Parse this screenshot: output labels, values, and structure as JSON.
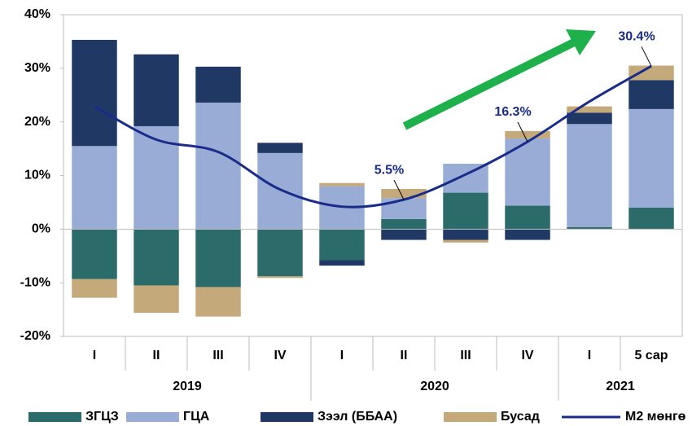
{
  "chart_data": {
    "type": "bar",
    "categories": [
      "I",
      "II",
      "III",
      "IV",
      "I",
      "II",
      "III",
      "IV",
      "I",
      "5 сар"
    ],
    "groups": [
      {
        "name": "2019",
        "span": 4
      },
      {
        "name": "2020",
        "span": 4
      },
      {
        "name": "2021",
        "span": 2
      }
    ],
    "stacked": true,
    "series": [
      {
        "name": "ЗГЦЗ",
        "color": "#2b6b6a",
        "values": [
          -9.3,
          -10.5,
          -10.8,
          -8.8,
          -5.8,
          1.9,
          6.8,
          4.4,
          0.4,
          4.0
        ]
      },
      {
        "name": "ГЦА",
        "color": "#98acd6",
        "values": [
          15.5,
          19.2,
          23.6,
          14.2,
          8.0,
          3.9,
          5.4,
          12.5,
          19.2,
          18.4
        ]
      },
      {
        "name": "Зээл (ББАА)",
        "color": "#1f3864",
        "values": [
          19.8,
          13.4,
          6.7,
          1.9,
          -1.0,
          -2.0,
          -2.0,
          -2.0,
          2.1,
          5.4
        ]
      },
      {
        "name": "Бусад",
        "color": "#c4a97b",
        "values": [
          -3.5,
          -5.1,
          -5.5,
          -0.3,
          0.6,
          1.7,
          -0.5,
          1.4,
          1.2,
          2.7
        ]
      },
      {
        "name": "M2 мөнгө",
        "type": "line",
        "color": "#1a2c8a",
        "values": [
          22.9,
          16.7,
          14.4,
          7.4,
          4.2,
          5.5,
          10.2,
          16.3,
          23.8,
          30.4
        ],
        "value_labels": [
          null,
          null,
          null,
          null,
          null,
          "5.5%",
          null,
          "16.3%",
          null,
          "30.4%"
        ]
      }
    ],
    "ylim": [
      -20,
      40
    ],
    "yticks": [
      {
        "value": -20,
        "label": "-20%"
      },
      {
        "value": -10,
        "label": "-10%"
      },
      {
        "value": 0,
        "label": "0%"
      },
      {
        "value": 10,
        "label": "10%"
      },
      {
        "value": 20,
        "label": "20%"
      },
      {
        "value": 30,
        "label": "30%"
      },
      {
        "value": 40,
        "label": "40%"
      }
    ],
    "grid": false,
    "legend": "bottom"
  }
}
